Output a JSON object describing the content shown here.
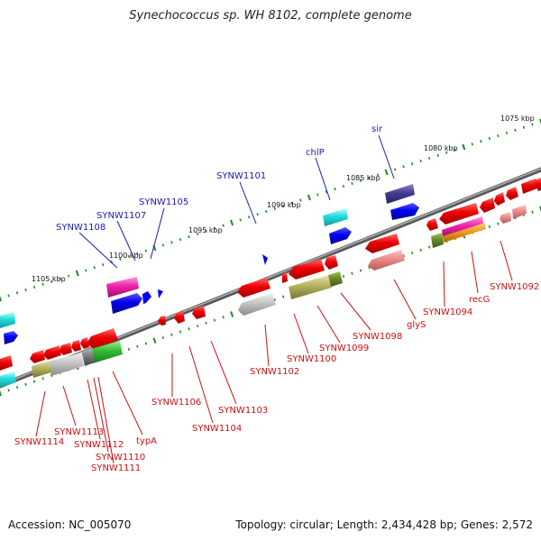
{
  "title": "Synechococcus sp. WH 8102, complete genome",
  "footer": {
    "accession": "Accession: NC_005070",
    "topology": "Topology: circular; Length: 2,434,428 bp; Genes: 2,572"
  },
  "colors": {
    "backbone": "#808080",
    "label_blue": "#1a1ab4",
    "label_red": "#cc1010",
    "tick": "#1e8c1e"
  },
  "scale_labels": [
    "1075 kbp",
    "1080 kbp",
    "1085 kbp",
    "1090 kbp",
    "1095 kbp",
    "1100 kbp",
    "1105 kbp"
  ],
  "forward_labels": [
    "sir",
    "chlP",
    "SYNW1101",
    "SYNW1105",
    "SYNW1107",
    "SYNW1108"
  ],
  "reverse_labels": [
    "SYNW1092",
    "recG",
    "SYNW1094",
    "glyS",
    "SYNW1098",
    "SYNW1099",
    "SYNW1100",
    "SYNW1102",
    "SYNW1103",
    "SYNW1104",
    "SYNW1106",
    "typA",
    "SYNW1111",
    "SYNW1110",
    "SYNW1112",
    "SYNW1113",
    "SYNW1114"
  ]
}
